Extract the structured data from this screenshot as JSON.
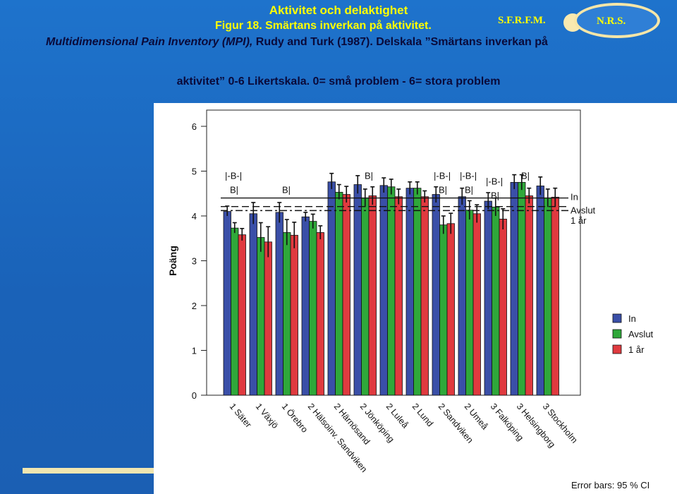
{
  "header": {
    "line1": "Aktivitet och delaktighet",
    "line2": "Figur 18. Smärtans inverkan på aktivitet.",
    "line3_italic": "Multidimensional Pain Inventory (MPI),",
    "line3_rest": " Rudy and Turk (1987). Delskala ”Smärtans inverkan på",
    "line4": "aktivitet” 0-6 Likertskala. 0= små problem - 6= stora problem"
  },
  "logo": {
    "left_text": "S.F.R.F.M.",
    "right_text": "N.R.S."
  },
  "colors": {
    "background": "#1f6fc4",
    "title": "#ffff00",
    "in": "#3a4fa8",
    "avslut": "#2fa83a",
    "ett_ar": "#e03a3f"
  },
  "chart_data": {
    "type": "bar",
    "categories": [
      "1 Säter",
      "1 Växjö",
      "1 Örebro",
      "2 Hälsoinv. Sandviken",
      "2 Härnösand",
      "2 Jönköping",
      "2 Luleå",
      "2 Lund",
      "2 Sandviken",
      "2 Umeå",
      "3 Falköping",
      "3 Helsingborg",
      "3 Stockholm"
    ],
    "series": [
      {
        "name": "In",
        "color": "#3a4fa8",
        "values": [
          4.1,
          4.05,
          4.08,
          3.98,
          4.76,
          4.7,
          4.68,
          4.62,
          4.48,
          4.43,
          4.33,
          4.75,
          4.67
        ],
        "ci": [
          [
            4.0,
            4.22
          ],
          [
            3.82,
            4.3
          ],
          [
            3.85,
            4.3
          ],
          [
            3.88,
            4.08
          ],
          [
            4.6,
            4.95
          ],
          [
            4.5,
            4.9
          ],
          [
            4.52,
            4.85
          ],
          [
            4.48,
            4.76
          ],
          [
            4.3,
            4.65
          ],
          [
            4.25,
            4.62
          ],
          [
            4.15,
            4.52
          ],
          [
            4.6,
            4.92
          ],
          [
            4.47,
            4.87
          ]
        ]
      },
      {
        "name": "Avslut",
        "color": "#2fa83a",
        "values": [
          3.73,
          3.52,
          3.63,
          3.88,
          4.53,
          4.4,
          4.65,
          4.62,
          3.8,
          4.13,
          4.2,
          4.75,
          4.4
        ],
        "ci": [
          [
            3.62,
            3.85
          ],
          [
            3.2,
            3.85
          ],
          [
            3.35,
            3.92
          ],
          [
            3.72,
            4.04
          ],
          [
            4.37,
            4.7
          ],
          [
            4.2,
            4.6
          ],
          [
            4.48,
            4.82
          ],
          [
            4.48,
            4.76
          ],
          [
            3.6,
            4.0
          ],
          [
            3.92,
            4.34
          ],
          [
            4.0,
            4.4
          ],
          [
            4.58,
            4.92
          ],
          [
            4.2,
            4.6
          ]
        ]
      },
      {
        "name": "1 år",
        "color": "#e03a3f",
        "values": [
          3.58,
          3.42,
          3.57,
          3.63,
          4.48,
          4.45,
          4.43,
          4.43,
          3.83,
          4.05,
          3.93,
          4.45,
          4.42
        ],
        "ci": [
          [
            3.45,
            3.72
          ],
          [
            3.08,
            3.76
          ],
          [
            3.28,
            3.86
          ],
          [
            3.48,
            3.78
          ],
          [
            4.3,
            4.66
          ],
          [
            4.25,
            4.65
          ],
          [
            4.26,
            4.6
          ],
          [
            4.3,
            4.56
          ],
          [
            3.6,
            4.06
          ],
          [
            3.85,
            4.25
          ],
          [
            3.7,
            4.16
          ],
          [
            4.28,
            4.62
          ],
          [
            4.22,
            4.62
          ]
        ]
      }
    ],
    "ylabel": "Poäng",
    "ylim": [
      0,
      6
    ],
    "yticks": [
      "0",
      "1",
      "2",
      "3",
      "4",
      "5",
      "6"
    ],
    "reference_lines": [
      {
        "series": "In",
        "style": "solid",
        "value": 4.4
      },
      {
        "series": "Avslut",
        "style": "dashed",
        "value": 4.21
      },
      {
        "series": "1 år",
        "style": "dash-dot",
        "value": 4.12
      }
    ],
    "reference_labels": [
      "In",
      "Avslut",
      "1 år"
    ],
    "significance_labels": [
      {
        "category": 0,
        "row": 1,
        "text": "|-B-|"
      },
      {
        "category": 0,
        "row": 2,
        "text": "B|"
      },
      {
        "category": 2,
        "row": 2,
        "text": "B|"
      },
      {
        "category": 5,
        "row": 1,
        "text": "B|"
      },
      {
        "category": 8,
        "row": 1,
        "text": "|-B-|"
      },
      {
        "category": 8,
        "row": 2,
        "text": "B|"
      },
      {
        "category": 9,
        "row": 1,
        "text": "|-B-|"
      },
      {
        "category": 9,
        "row": 2,
        "text": "B|"
      },
      {
        "category": 10,
        "row": 1,
        "text": "|-B-|"
      },
      {
        "category": 10,
        "row": 2,
        "text": "B|"
      },
      {
        "category": 11,
        "row": 1,
        "text": "B|"
      }
    ],
    "legend": {
      "placement": "right",
      "items": [
        "In",
        "Avslut",
        "1 år"
      ]
    },
    "footnote": "Error bars: 95 % CI",
    "grid": false
  }
}
